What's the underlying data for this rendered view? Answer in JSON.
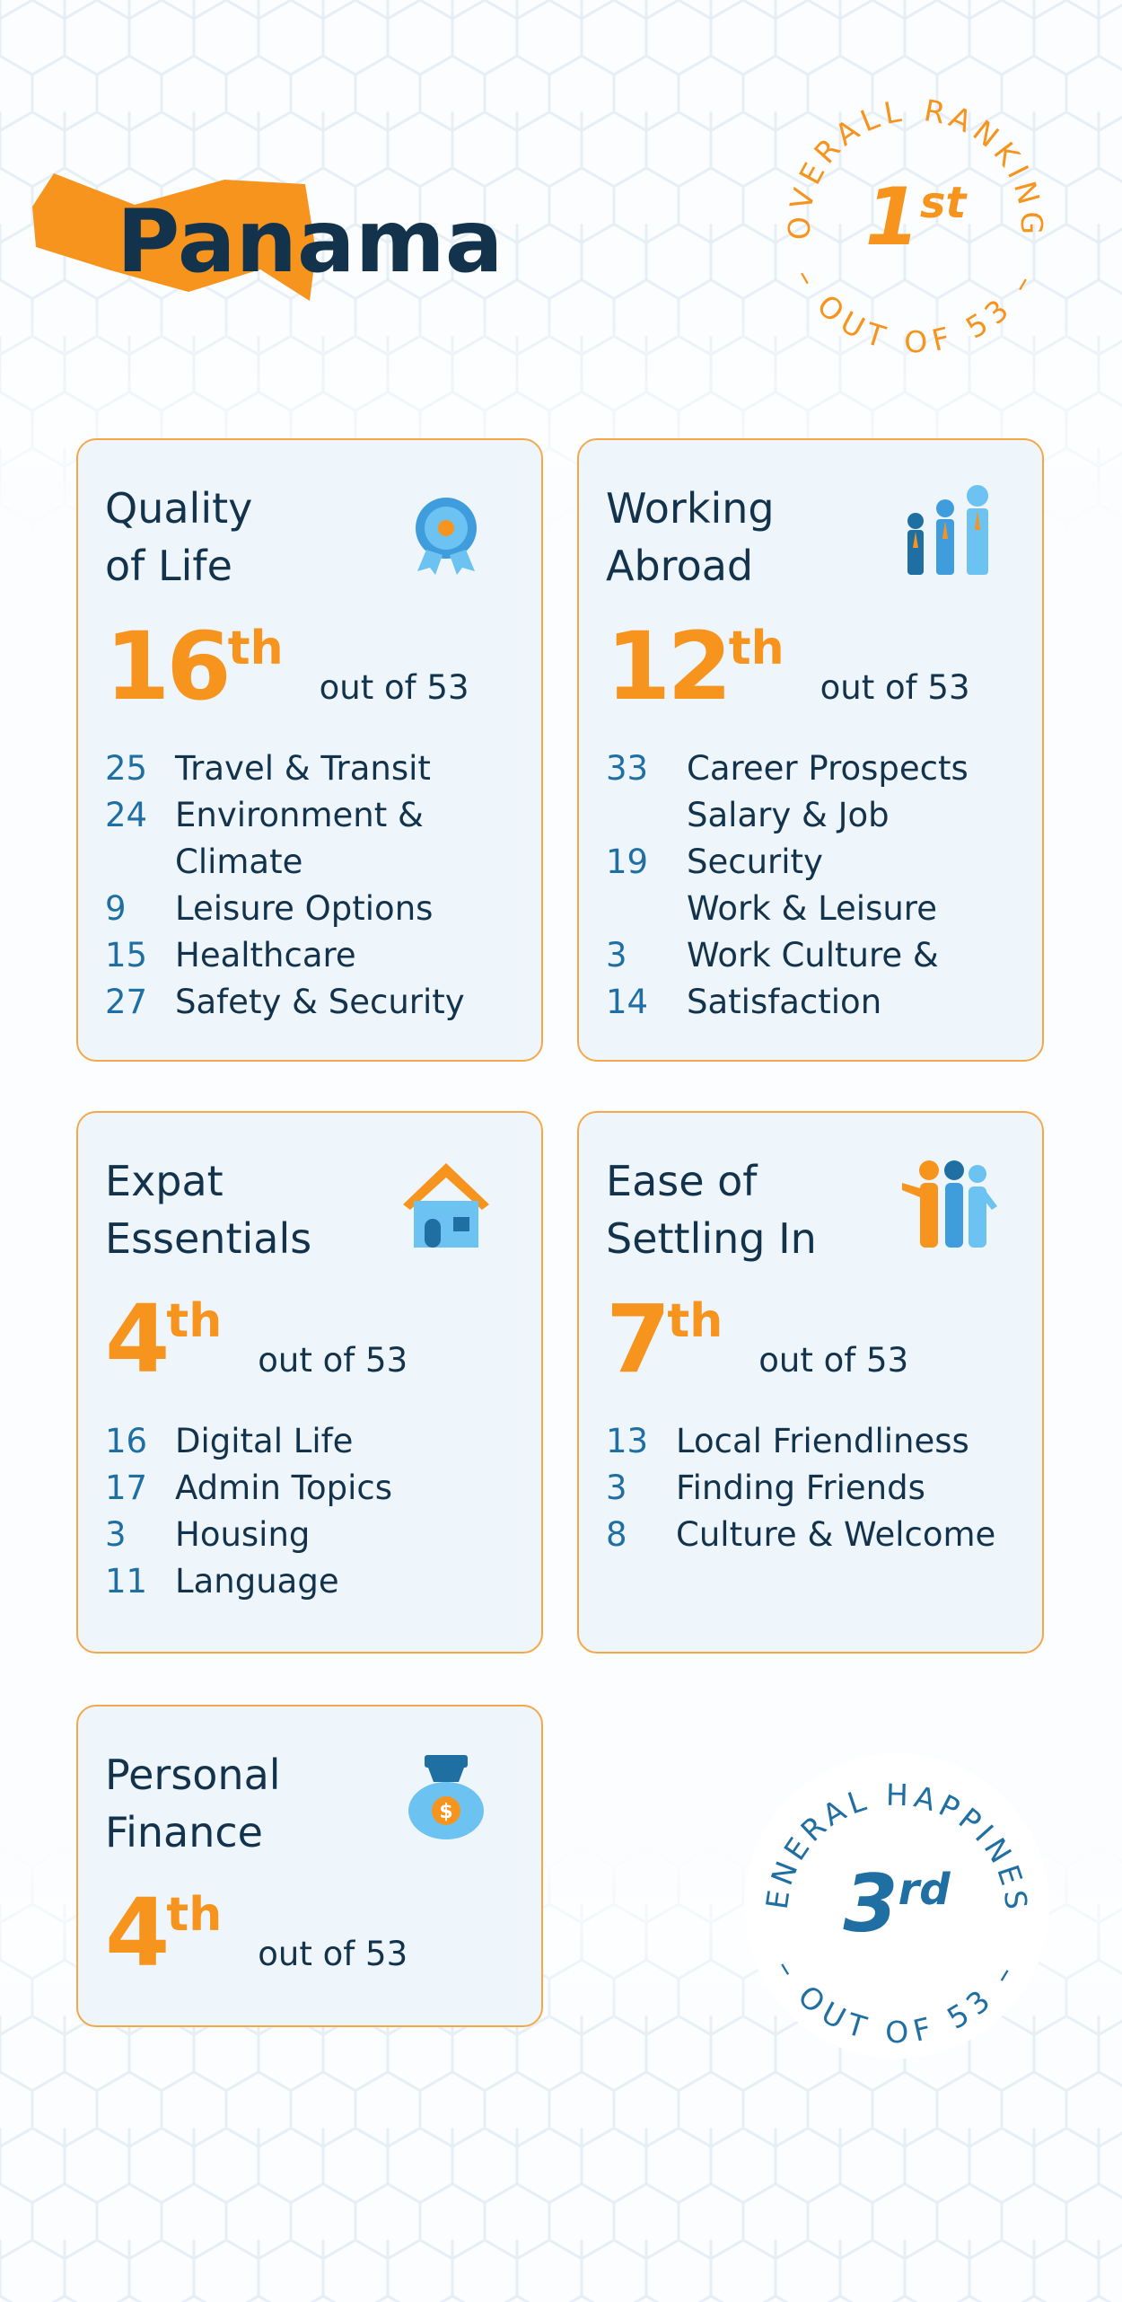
{
  "header": {
    "title": "Panama"
  },
  "overall_badge": {
    "label": "OVERALL RANKING",
    "rank": 1,
    "suffix": "st",
    "footer": "– OUT OF 53 –"
  },
  "cards": [
    {
      "title": [
        "Quality",
        "of Life"
      ],
      "rank": 16,
      "suffix": "th",
      "out_of": "out of 53",
      "items": [
        {
          "rank": 25,
          "label": "Travel & Transit"
        },
        {
          "rank": 24,
          "label": "Environment &"
        },
        {
          "label": "Climate"
        },
        {
          "rank": 9,
          "label": "Leisure Options"
        },
        {
          "rank": 15,
          "label": "Healthcare"
        },
        {
          "rank": 27,
          "label": "Safety & Security"
        }
      ]
    },
    {
      "title": [
        "Working",
        "Abroad"
      ],
      "rank": 12,
      "suffix": "th",
      "out_of": "out of 53",
      "items": [
        {
          "rank": 33,
          "label": "Career Prospects"
        },
        {
          "label": "Salary & Job"
        },
        {
          "rank": 19,
          "label": "Security"
        },
        {
          "label": "Work & Leisure"
        },
        {
          "rank": 3,
          "label": "Work Culture &"
        },
        {
          "rank": 14,
          "label": "Satisfaction"
        }
      ]
    },
    {
      "title": [
        "Expat",
        "Essentials"
      ],
      "rank": 4,
      "suffix": "th",
      "out_of": "out of 53",
      "items": [
        {
          "rank": 16,
          "label": "Digital Life"
        },
        {
          "rank": 17,
          "label": "Admin Topics"
        },
        {
          "rank": 3,
          "label": "Housing"
        },
        {
          "rank": 11,
          "label": "Language"
        }
      ]
    },
    {
      "title": [
        "Ease of",
        "Settling In"
      ],
      "rank": 7,
      "suffix": "th",
      "out_of": "out of 53",
      "items": [
        {
          "rank": 13,
          "label": "Local Friendliness"
        },
        {
          "rank": 3,
          "label": "Finding Friends"
        },
        {
          "rank": 8,
          "label": "Culture & Welcome"
        }
      ]
    },
    {
      "title": [
        "Personal",
        "Finance"
      ],
      "rank": 4,
      "suffix": "th",
      "out_of": "out of 53",
      "items": []
    }
  ],
  "happiness_badge": {
    "label": "GENERAL HAPPINESS",
    "rank": 3,
    "suffix": "rd",
    "footer": "– OUT OF 53 –"
  }
}
